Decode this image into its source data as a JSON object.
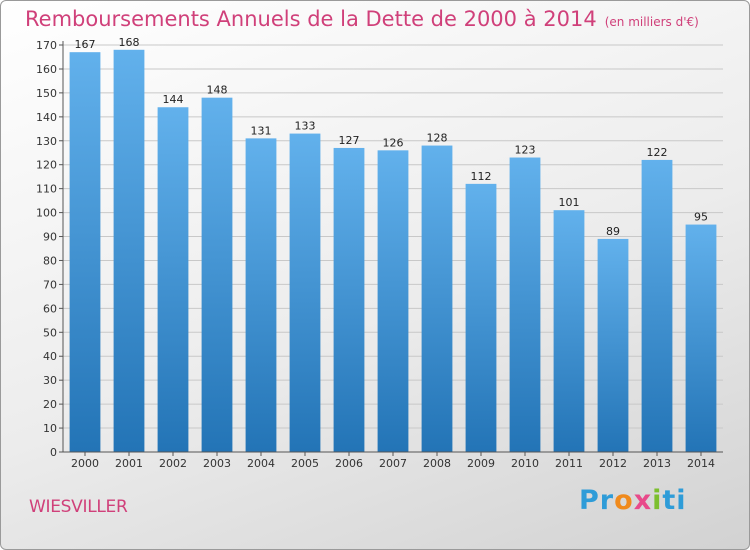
{
  "title": "Remboursements Annuels de la Dette de 2000 à 2014",
  "subtitle": "(en milliers d'€)",
  "commune": "WIESVILLER",
  "logo": {
    "text": "Proxiti",
    "letters": [
      "P",
      "r",
      "o",
      "x",
      "i",
      "t",
      "i"
    ],
    "colors": [
      "#2e9cd8",
      "#2e9cd8",
      "#f08a1c",
      "#e84a8a",
      "#7cbf2e",
      "#2e9cd8",
      "#2e9cd8"
    ]
  },
  "colors": {
    "bar_top": "#62b1ec",
    "bar_bottom": "#2374b6",
    "grid": "#c8c8c8",
    "title": "#d0407a"
  },
  "chart_data": {
    "type": "bar",
    "categories": [
      "2000",
      "2001",
      "2002",
      "2003",
      "2004",
      "2005",
      "2006",
      "2007",
      "2008",
      "2009",
      "2010",
      "2011",
      "2012",
      "2013",
      "2014"
    ],
    "values": [
      167,
      168,
      144,
      148,
      131,
      133,
      127,
      126,
      128,
      112,
      123,
      101,
      89,
      122,
      95
    ],
    "title": "Remboursements Annuels de la Dette de 2000 à 2014",
    "subtitle": "(en milliers d'€)",
    "xlabel": "",
    "ylabel": "",
    "ylim": [
      0,
      170
    ],
    "yticks": [
      0,
      10,
      20,
      30,
      40,
      50,
      60,
      70,
      80,
      90,
      100,
      110,
      120,
      130,
      140,
      150,
      160,
      170
    ],
    "grid": true,
    "data_labels": true
  }
}
